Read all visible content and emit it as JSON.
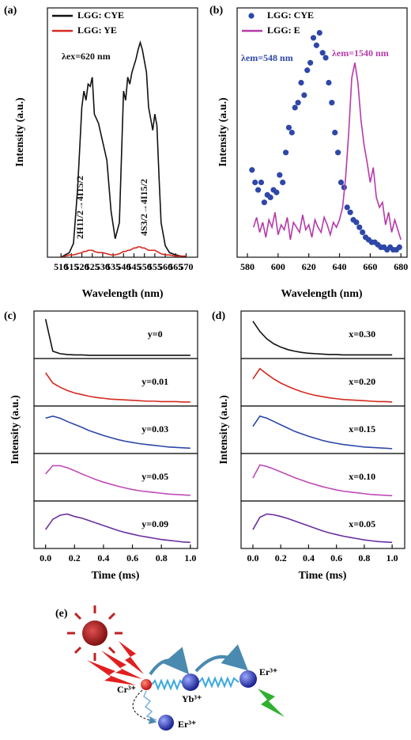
{
  "chart_data": [
    {
      "type": "line",
      "panel_label": "(a)",
      "x_label": "Wavelength (nm)",
      "y_label": "Intensity (a.u.)",
      "x": [
        510,
        512,
        514,
        516,
        518,
        520,
        521,
        522,
        523,
        524,
        525,
        526,
        528,
        530,
        532,
        534,
        536,
        538,
        540,
        541,
        542,
        543,
        544,
        545,
        546,
        547,
        548,
        549,
        550,
        551,
        552,
        553,
        554,
        555,
        556,
        557,
        558,
        560,
        562,
        565,
        570
      ],
      "series": [
        {
          "name": "LGG: CYE",
          "color": "#111111",
          "values": [
            0,
            0.01,
            0.02,
            0.06,
            0.3,
            0.65,
            0.72,
            0.68,
            0.75,
            0.74,
            0.78,
            0.62,
            0.58,
            0.5,
            0.42,
            0.2,
            0.08,
            0.15,
            0.72,
            0.68,
            0.78,
            0.75,
            0.8,
            0.83,
            0.86,
            0.9,
            0.93,
            0.9,
            0.85,
            0.8,
            0.65,
            0.6,
            0.55,
            0.62,
            0.57,
            0.35,
            0.15,
            0.05,
            0.02,
            0.01,
            0
          ]
        },
        {
          "name": "LGG: YE",
          "color": "#d42a20",
          "values": [
            0,
            0.005,
            0.01,
            0.01,
            0.015,
            0.02,
            0.025,
            0.025,
            0.03,
            0.03,
            0.03,
            0.025,
            0.02,
            0.02,
            0.015,
            0.01,
            0.01,
            0.015,
            0.025,
            0.025,
            0.03,
            0.03,
            0.035,
            0.04,
            0.04,
            0.045,
            0.045,
            0.04,
            0.04,
            0.035,
            0.03,
            0.03,
            0.03,
            0.03,
            0.025,
            0.02,
            0.015,
            0.01,
            0.01,
            0.005,
            0.005
          ]
        }
      ],
      "annotations": [
        "λex=620 nm",
        "2H11/2→4I15/2",
        "4S3/2→4I15/2"
      ],
      "xlim": [
        503.5,
        575.5
      ],
      "xticks": [
        510,
        515,
        520,
        525,
        530,
        535,
        540,
        545,
        550,
        555,
        560,
        565,
        570
      ],
      "ylim": [
        0,
        1.08
      ]
    },
    {
      "type": "scatter",
      "panel_label": "(b)",
      "x_label": "Wavelength (nm)",
      "y_label": "Intensity (a.u.)",
      "series": [
        {
          "name": "LGG: CYE",
          "type": "scatter",
          "color": "#2e47a8",
          "x": [
            583,
            585,
            587,
            589,
            591,
            593,
            595,
            597,
            599,
            601,
            603,
            605,
            607,
            609,
            611,
            613,
            615,
            617,
            619,
            621,
            623,
            625,
            627,
            629,
            631,
            633,
            635,
            637,
            639,
            641,
            643,
            645,
            647,
            649,
            651,
            653,
            655,
            657,
            659,
            661,
            663,
            665,
            667,
            669,
            671,
            673,
            675,
            677,
            679
          ],
          "values": [
            0.35,
            0.3,
            0.27,
            0.3,
            0.22,
            0.25,
            0.24,
            0.27,
            0.26,
            0.33,
            0.3,
            0.42,
            0.52,
            0.5,
            0.6,
            0.62,
            0.7,
            0.65,
            0.75,
            0.78,
            0.88,
            0.85,
            0.9,
            0.82,
            0.8,
            0.7,
            0.62,
            0.5,
            0.42,
            0.3,
            0.28,
            0.2,
            0.18,
            0.15,
            0.14,
            0.12,
            0.1,
            0.08,
            0.07,
            0.06,
            0.06,
            0.05,
            0.04,
            0.04,
            0.03,
            0.04,
            0.03,
            0.03,
            0.04
          ]
        },
        {
          "name": "LGG: E",
          "type": "line",
          "color": "#b63aa8",
          "x": [
            584,
            586,
            588,
            590,
            592,
            594,
            596,
            598,
            600,
            602,
            604,
            606,
            608,
            610,
            612,
            614,
            616,
            618,
            620,
            622,
            624,
            626,
            628,
            630,
            632,
            634,
            636,
            638,
            640,
            642,
            644,
            646,
            648,
            650,
            652,
            654,
            656,
            658,
            660,
            662,
            664,
            666,
            668,
            670,
            672,
            674,
            676,
            678,
            680
          ],
          "values": [
            0.12,
            0.16,
            0.1,
            0.14,
            0.08,
            0.15,
            0.12,
            0.18,
            0.09,
            0.13,
            0.11,
            0.16,
            0.07,
            0.14,
            0.12,
            0.1,
            0.17,
            0.11,
            0.13,
            0.08,
            0.15,
            0.12,
            0.1,
            0.16,
            0.13,
            0.09,
            0.14,
            0.12,
            0.15,
            0.2,
            0.32,
            0.5,
            0.72,
            0.78,
            0.7,
            0.55,
            0.45,
            0.38,
            0.3,
            0.36,
            0.24,
            0.2,
            0.22,
            0.13,
            0.18,
            0.1,
            0.15,
            0.11,
            0.07
          ]
        }
      ],
      "annotations": [
        "λem=548 nm",
        "λem=1540 nm"
      ],
      "xlim": [
        573.3,
        684
      ],
      "xticks": [
        580,
        600,
        620,
        640,
        660,
        680
      ],
      "ylim": [
        0,
        1
      ]
    },
    {
      "type": "line",
      "panel_label": "(c)",
      "subplots": true,
      "x_label": "Time (ms)",
      "y_label": "Intensity (a.u.)",
      "x": [
        0,
        0.05,
        0.1,
        0.15,
        0.2,
        0.25,
        0.3,
        0.35,
        0.4,
        0.45,
        0.5,
        0.55,
        0.6,
        0.65,
        0.7,
        0.75,
        0.8,
        0.85,
        0.9,
        0.95,
        1
      ],
      "series": [
        {
          "name": "y=0",
          "color": "#111111",
          "values": [
            0.9,
            0.12,
            0.06,
            0.04,
            0.03,
            0.03,
            0.02,
            0.02,
            0.02,
            0.02,
            0.02,
            0.02,
            0.02,
            0.02,
            0.02,
            0.02,
            0.02,
            0.02,
            0.02,
            0.02,
            0.02
          ]
        },
        {
          "name": "y=0.01",
          "color": "#d42a20",
          "values": [
            0.75,
            0.5,
            0.4,
            0.32,
            0.26,
            0.22,
            0.18,
            0.15,
            0.13,
            0.11,
            0.1,
            0.09,
            0.08,
            0.07,
            0.06,
            0.06,
            0.05,
            0.05,
            0.05,
            0.04,
            0.04
          ]
        },
        {
          "name": "y=0.03",
          "color": "#2e47a8",
          "values": [
            0.8,
            0.85,
            0.8,
            0.72,
            0.65,
            0.58,
            0.5,
            0.44,
            0.38,
            0.33,
            0.28,
            0.24,
            0.21,
            0.18,
            0.16,
            0.14,
            0.12,
            0.1,
            0.09,
            0.08,
            0.07
          ]
        },
        {
          "name": "y=0.05",
          "color": "#c04ab8",
          "values": [
            0.6,
            0.8,
            0.8,
            0.75,
            0.68,
            0.6,
            0.53,
            0.46,
            0.4,
            0.35,
            0.3,
            0.26,
            0.22,
            0.19,
            0.17,
            0.15,
            0.13,
            0.11,
            0.1,
            0.09,
            0.08
          ]
        },
        {
          "name": "y=0.09",
          "color": "#6a2fa0",
          "values": [
            0.4,
            0.65,
            0.75,
            0.78,
            0.72,
            0.68,
            0.62,
            0.56,
            0.5,
            0.44,
            0.38,
            0.33,
            0.29,
            0.25,
            0.22,
            0.19,
            0.16,
            0.14,
            0.12,
            0.1,
            0.09
          ]
        }
      ],
      "xlim": [
        -0.08,
        1.05
      ],
      "xticks": [
        {
          "value": 0,
          "label": "0.0"
        },
        0.2,
        0.4,
        0.6,
        0.8,
        {
          "value": 1,
          "label": "1.0"
        }
      ],
      "ylim": [
        0,
        1
      ]
    },
    {
      "type": "line",
      "panel_label": "(d)",
      "subplots": true,
      "x_label": "Time (ms)",
      "y_label": "Intensity (a.u.)",
      "x": [
        0,
        0.05,
        0.1,
        0.15,
        0.2,
        0.25,
        0.3,
        0.35,
        0.4,
        0.45,
        0.5,
        0.55,
        0.6,
        0.65,
        0.7,
        0.75,
        0.8,
        0.85,
        0.9,
        0.95,
        1
      ],
      "series": [
        {
          "name": "x=0.30",
          "color": "#111111",
          "values": [
            0.85,
            0.6,
            0.42,
            0.3,
            0.22,
            0.16,
            0.12,
            0.09,
            0.07,
            0.06,
            0.05,
            0.04,
            0.04,
            0.03,
            0.03,
            0.03,
            0.03,
            0.03,
            0.03,
            0.03,
            0.03
          ]
        },
        {
          "name": "x=0.20",
          "color": "#d42a20",
          "values": [
            0.6,
            0.85,
            0.72,
            0.6,
            0.5,
            0.42,
            0.35,
            0.29,
            0.24,
            0.2,
            0.17,
            0.14,
            0.12,
            0.1,
            0.09,
            0.08,
            0.07,
            0.06,
            0.05,
            0.05,
            0.04
          ]
        },
        {
          "name": "x=0.15",
          "color": "#2e47a8",
          "values": [
            0.6,
            0.85,
            0.8,
            0.72,
            0.64,
            0.56,
            0.48,
            0.42,
            0.36,
            0.31,
            0.26,
            0.22,
            0.19,
            0.16,
            0.14,
            0.12,
            0.1,
            0.09,
            0.08,
            0.07,
            0.06
          ]
        },
        {
          "name": "x=0.10",
          "color": "#c04ab8",
          "values": [
            0.5,
            0.82,
            0.78,
            0.72,
            0.65,
            0.58,
            0.51,
            0.45,
            0.39,
            0.34,
            0.29,
            0.25,
            0.21,
            0.18,
            0.16,
            0.14,
            0.12,
            0.1,
            0.09,
            0.08,
            0.07
          ]
        },
        {
          "name": "x=0.05",
          "color": "#6a2fa0",
          "values": [
            0.4,
            0.7,
            0.78,
            0.76,
            0.72,
            0.67,
            0.61,
            0.55,
            0.49,
            0.43,
            0.37,
            0.32,
            0.28,
            0.24,
            0.21,
            0.18,
            0.15,
            0.13,
            0.11,
            0.1,
            0.09
          ]
        }
      ],
      "xlim": [
        -0.085,
        1.09
      ],
      "xticks": [
        {
          "value": 0,
          "label": "0.0"
        },
        0.2,
        0.4,
        0.6,
        0.8,
        {
          "value": 1,
          "label": "1.0"
        }
      ],
      "ylim": [
        0,
        1
      ]
    }
  ],
  "diagram": {
    "panel_label": "(e)",
    "labels": [
      "Cr³⁺",
      "Yb³⁺",
      "Er³⁺",
      "Er³⁺"
    ]
  }
}
